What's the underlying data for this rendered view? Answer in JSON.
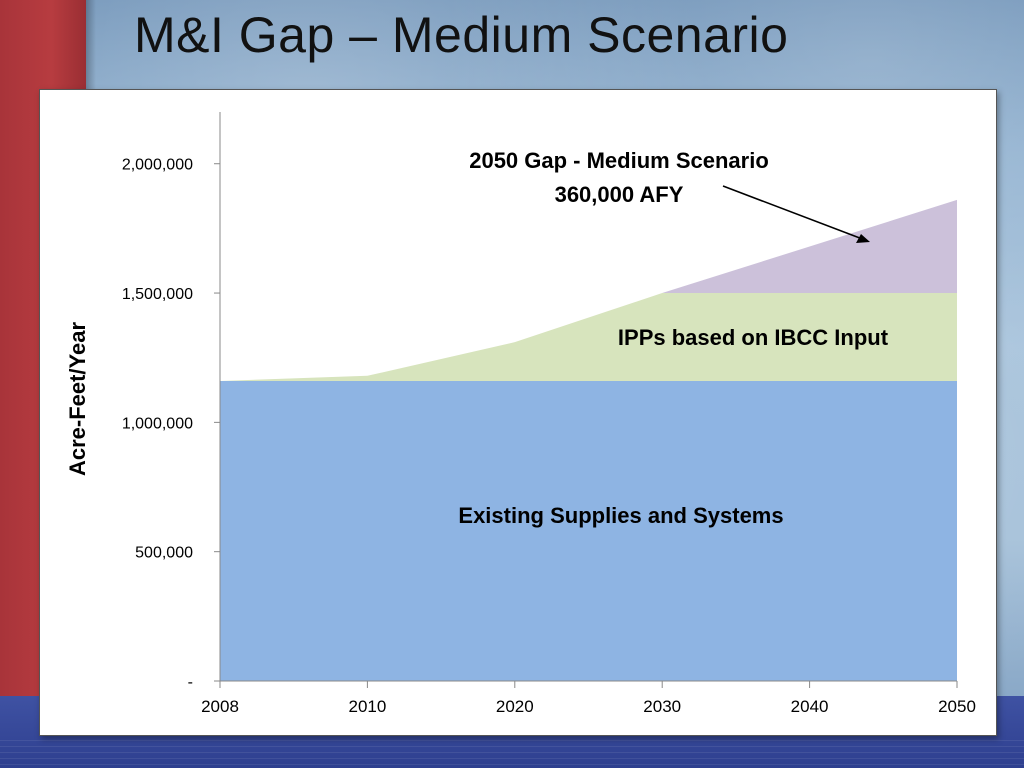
{
  "slide": {
    "title": "M&I Gap – Medium Scenario"
  },
  "colors": {
    "existing": "#8eb4e3",
    "ipps": "#d7e4bd",
    "gap": "#ccc1da",
    "accent_red": "#b23a3e",
    "band_blue": "#34469a"
  },
  "chart_data": {
    "type": "area",
    "title": "",
    "xlabel": "",
    "ylabel": "Acre-Feet/Year",
    "categories": [
      "2008",
      "2010",
      "2020",
      "2030",
      "2040",
      "2050"
    ],
    "ylim": [
      0,
      2200000
    ],
    "yticks": [
      {
        "value": 0,
        "label": "-"
      },
      {
        "value": 500000,
        "label": "500,000"
      },
      {
        "value": 1000000,
        "label": "1,000,000"
      },
      {
        "value": 1500000,
        "label": "1,500,000"
      },
      {
        "value": 2000000,
        "label": "2,000,000"
      }
    ],
    "stacked": true,
    "series": [
      {
        "key": "existing",
        "values": [
          1160000,
          1160000,
          1160000,
          1160000,
          1160000,
          1160000
        ]
      },
      {
        "key": "ipps",
        "values": [
          0,
          20000,
          150000,
          340000,
          340000,
          340000
        ]
      },
      {
        "key": "gap",
        "values": [
          0,
          0,
          0,
          0,
          180000,
          360000
        ]
      }
    ],
    "grid": false,
    "legend": "none",
    "annotations": {
      "existing_label": "Existing Supplies and Systems",
      "ipps_label": "IPPs based on IBCC Input",
      "gap_line1": "2050 Gap - Medium Scenario",
      "gap_line2": "360,000 AFY"
    }
  }
}
